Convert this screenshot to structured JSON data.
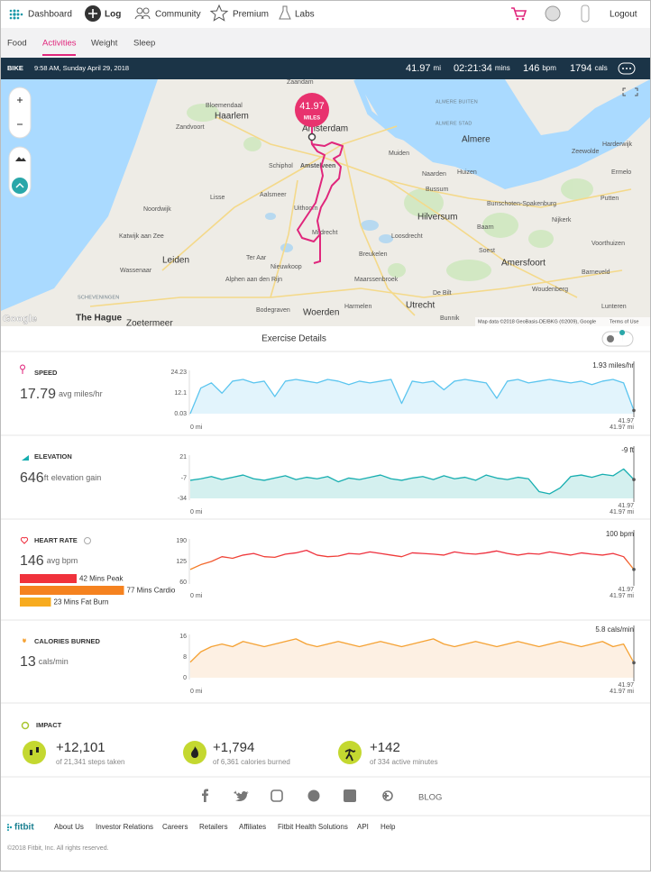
{
  "nav": {
    "items": [
      "Dashboard",
      "Log",
      "Community",
      "Premium",
      "Labs"
    ],
    "logout": "Logout"
  },
  "subnav": {
    "items": [
      "Food",
      "Activities",
      "Weight",
      "Sleep"
    ]
  },
  "activity_bar": {
    "type": "BIKE",
    "datetime": "9:58 AM, Sunday April 29, 2018",
    "stats": [
      {
        "value": "41.97",
        "unit": "mi"
      },
      {
        "value": "02:21:34",
        "unit": "mins"
      },
      {
        "value": "146",
        "unit": "bpm"
      },
      {
        "value": "1794",
        "unit": "cals"
      }
    ]
  },
  "map": {
    "marker": {
      "value": "41.97",
      "unit": "MILES"
    },
    "places": [
      "Zaandam",
      "Bloemendaal",
      "Haarlem",
      "Zandvoort",
      "Amsterdam",
      "ALMERE BUITEN",
      "ALMERE STAD",
      "Almere",
      "Harderwijk",
      "Muiden",
      "Zeewolde",
      "Schiphol",
      "Amstelveen",
      "Naarden",
      "Huizen",
      "Ermelo",
      "Aalsmeer",
      "Bussum",
      "Lisse",
      "Putten",
      "Uithoorn",
      "Bunschoten-Spakenburg",
      "Noordwijk",
      "Hilversum",
      "Nijkerk",
      "Katwijk aan Zee",
      "Mijdrecht",
      "Baarn",
      "Loosdrecht",
      "Voorthuizen",
      "Soest",
      "Wassenaar",
      "Leiden",
      "Ter Aar",
      "Breukelen",
      "Amersfoort",
      "Barneveld",
      "Alphen aan den Rijn",
      "Nieuwkoop",
      "Maarssenbroek",
      "SCHEVENINGEN",
      "De Bilt",
      "Woudenberg",
      "Lunteren",
      "The Hague",
      "Zoetermeer",
      "Bodegraven",
      "Woerden",
      "Harmelen",
      "Utrecht",
      "Bunnik"
    ],
    "logo": "Google",
    "attribution": "Map data ©2018 GeoBasis-DE/BKG (©2009), Google",
    "terms": "Terms of Use"
  },
  "section_title": "Exercise Details",
  "chart_data": [
    {
      "type": "area",
      "title": "SPEED",
      "summary": "17.79",
      "summary_unit": "avg miles/hr",
      "xlim": [
        0,
        41.97
      ],
      "xticks": [
        {
          "value": 0,
          "label": "0 mi"
        },
        {
          "value": 41.97,
          "label": "41.97 mi"
        }
      ],
      "ylim": [
        0.03,
        24.23
      ],
      "yticks": [
        0.03,
        12.1,
        24.23
      ],
      "grid": false,
      "x": [
        0,
        1,
        2,
        3,
        4,
        5,
        6,
        7,
        8,
        9,
        10,
        11,
        12,
        13,
        14,
        15,
        16,
        17,
        18,
        19,
        20,
        21,
        22,
        23,
        24,
        25,
        26,
        27,
        28,
        29,
        30,
        31,
        32,
        33,
        34,
        35,
        36,
        37,
        38,
        39,
        40,
        41,
        41.97
      ],
      "series": [
        {
          "color": "#5bc5ef",
          "fill": "#e2f4fc",
          "values": [
            0.03,
            15,
            18,
            12,
            19,
            20,
            18,
            19,
            10,
            19,
            20,
            19,
            18,
            20,
            19,
            17,
            19,
            18,
            19,
            20,
            6,
            19,
            18,
            19,
            14,
            19,
            20,
            19,
            18,
            9,
            19,
            20,
            18,
            19,
            20,
            19,
            18,
            19,
            17,
            19,
            20,
            18,
            1.93
          ]
        }
      ],
      "cursor": {
        "x": 41.97,
        "y": 1.93,
        "label": "1.93 miles/hr"
      }
    },
    {
      "type": "area",
      "title": "ELEVATION",
      "summary": "646",
      "summary_unit": "ft",
      "summary_note": "elevation gain",
      "xlim": [
        0,
        41.97
      ],
      "xticks": [
        {
          "value": 0,
          "label": "0 mi"
        },
        {
          "value": 41.97,
          "label": "41.97 mi"
        }
      ],
      "ylim": [
        -34,
        21
      ],
      "yticks": [
        -34,
        -7,
        21
      ],
      "grid": false,
      "x": [
        0,
        1,
        2,
        3,
        4,
        5,
        6,
        7,
        8,
        9,
        10,
        11,
        12,
        13,
        14,
        15,
        16,
        17,
        18,
        19,
        20,
        21,
        22,
        23,
        24,
        25,
        26,
        27,
        28,
        29,
        30,
        31,
        32,
        33,
        34,
        35,
        36,
        37,
        38,
        39,
        40,
        41,
        41.97
      ],
      "series": [
        {
          "color": "#17aeb0",
          "fill": "#d4f0ef",
          "values": [
            -10,
            -8,
            -5,
            -9,
            -6,
            -3,
            -8,
            -10,
            -7,
            -4,
            -9,
            -6,
            -8,
            -5,
            -12,
            -7,
            -9,
            -6,
            -3,
            -8,
            -10,
            -7,
            -5,
            -9,
            -4,
            -8,
            -6,
            -10,
            -3,
            -7,
            -9,
            -6,
            -8,
            -25,
            -28,
            -20,
            -5,
            -3,
            -6,
            -2,
            -4,
            5,
            -9
          ]
        }
      ],
      "cursor": {
        "x": 41.97,
        "y": -9,
        "label": "-9 ft"
      }
    },
    {
      "type": "line",
      "title": "HEART RATE",
      "summary": "146",
      "summary_unit": "avg bpm",
      "xlim": [
        0,
        41.97
      ],
      "xticks": [
        {
          "value": 0,
          "label": "0 mi"
        },
        {
          "value": 41.97,
          "label": "41.97 mi"
        }
      ],
      "ylim": [
        60,
        190
      ],
      "yticks": [
        60,
        125,
        190
      ],
      "grid": false,
      "x": [
        0,
        1,
        2,
        3,
        4,
        5,
        6,
        7,
        8,
        9,
        10,
        11,
        12,
        13,
        14,
        15,
        16,
        17,
        18,
        19,
        20,
        21,
        22,
        23,
        24,
        25,
        26,
        27,
        28,
        29,
        30,
        31,
        32,
        33,
        34,
        35,
        36,
        37,
        38,
        39,
        40,
        41,
        41.97
      ],
      "series": [
        {
          "color": "#ee2d3d",
          "color_low": "#f7a51c",
          "values": [
            100,
            115,
            125,
            140,
            135,
            145,
            150,
            140,
            138,
            148,
            152,
            160,
            145,
            140,
            142,
            150,
            148,
            155,
            150,
            145,
            140,
            152,
            150,
            148,
            145,
            155,
            150,
            148,
            152,
            158,
            150,
            145,
            150,
            148,
            155,
            150,
            145,
            152,
            148,
            145,
            150,
            140,
            100
          ]
        }
      ],
      "cursor": {
        "x": 41.97,
        "y": 100,
        "label": "100 bpm"
      },
      "zones": {
        "labels": [
          "42 Mins Peak",
          "77 Mins Cardio",
          "23 Mins Fat Burn"
        ],
        "minutes": [
          42,
          77,
          23
        ],
        "colors": [
          "#f0323c",
          "#f5821f",
          "#f7ab1f"
        ]
      }
    },
    {
      "type": "area",
      "title": "CALORIES BURNED",
      "summary": "13",
      "summary_unit": "cals/min",
      "xlim": [
        0,
        41.97
      ],
      "xticks": [
        {
          "value": 0,
          "label": "0 mi"
        },
        {
          "value": 41.97,
          "label": "41.97 mi"
        }
      ],
      "ylim": [
        0,
        16
      ],
      "yticks": [
        0,
        8,
        16
      ],
      "grid": false,
      "x": [
        0,
        1,
        2,
        3,
        4,
        5,
        6,
        7,
        8,
        9,
        10,
        11,
        12,
        13,
        14,
        15,
        16,
        17,
        18,
        19,
        20,
        21,
        22,
        23,
        24,
        25,
        26,
        27,
        28,
        29,
        30,
        31,
        32,
        33,
        34,
        35,
        36,
        37,
        38,
        39,
        40,
        41,
        41.97
      ],
      "series": [
        {
          "color": "#f5a234",
          "fill": "#fdf0e3",
          "values": [
            6,
            10,
            12,
            13,
            12,
            14,
            13,
            12,
            13,
            14,
            15,
            13,
            12,
            13,
            14,
            13,
            12,
            13,
            14,
            13,
            12,
            13,
            14,
            15,
            13,
            12,
            13,
            14,
            13,
            12,
            13,
            14,
            13,
            12,
            13,
            14,
            13,
            12,
            13,
            14,
            12,
            13,
            5.8
          ]
        }
      ],
      "cursor": {
        "x": 41.97,
        "y": 5.8,
        "label": "5.8 cals/min"
      }
    }
  ],
  "impact": {
    "title": "IMPACT",
    "items": [
      {
        "value": "+12,101",
        "desc": "of 21,341 steps taken"
      },
      {
        "value": "+1,794",
        "desc": "of 6,361 calories burned"
      },
      {
        "value": "+142",
        "desc": "of 334 active minutes"
      }
    ]
  },
  "social": {
    "blog": "BLOG"
  },
  "footer": {
    "logo": "fitbit",
    "links": [
      "About Us",
      "Investor Relations",
      "Careers",
      "Retailers",
      "Affiliates",
      "Fitbit Health Solutions",
      "API",
      "Help"
    ],
    "copyright": "©2018 Fitbit, Inc. All rights reserved."
  }
}
